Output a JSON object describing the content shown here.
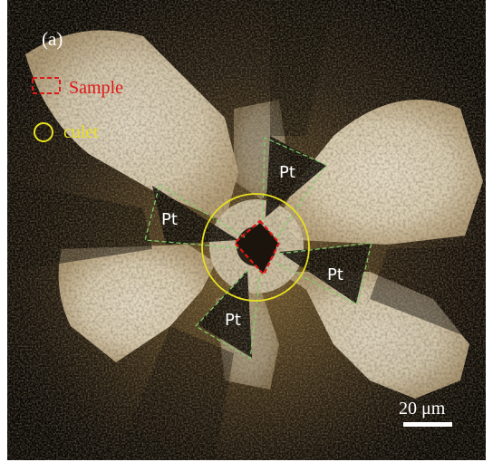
{
  "panel_label": "(a)",
  "legend": {
    "sample": {
      "label": "Sample",
      "color": "#e01818"
    },
    "culet": {
      "label": "culet",
      "color": "#e8e020"
    }
  },
  "electrodes": [
    {
      "label": "Pt"
    },
    {
      "label": "Pt"
    },
    {
      "label": "Pt"
    },
    {
      "label": "Pt"
    }
  ],
  "scale_bar": {
    "label": "20 μm",
    "color": "#ffffff"
  },
  "colors": {
    "background": "#060504",
    "diamond_bright": "#e6dcc4",
    "electrode_outline": "#7fcf6a"
  }
}
